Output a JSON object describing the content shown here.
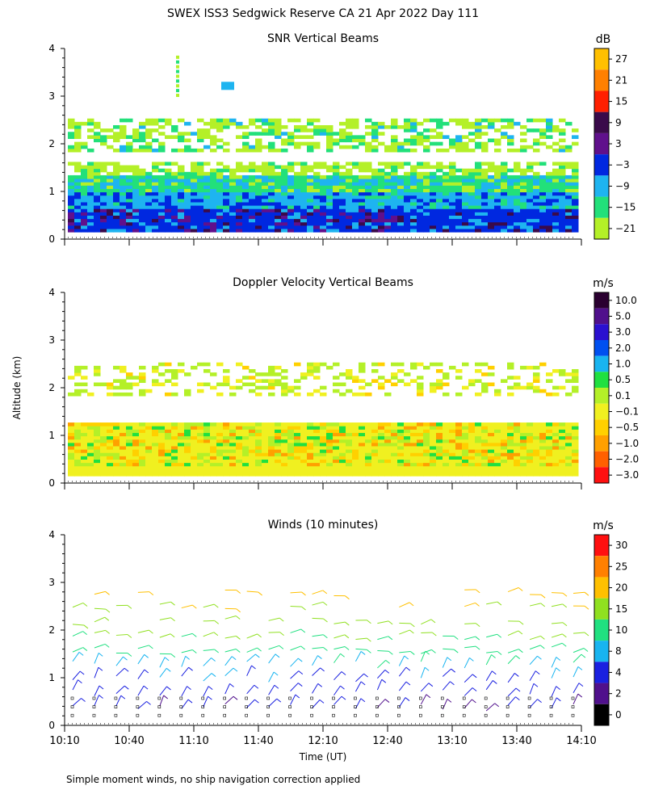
{
  "title": "SWEX ISS3 Sedgwick Reserve CA  21 Apr 2022 Day 111",
  "ylabel": "Altitude (km)",
  "xlabel": "Time (UT)",
  "footnote": "Simple moment winds, no ship navigation correction applied",
  "xticks": [
    "10:10",
    "10:40",
    "11:10",
    "11:40",
    "12:10",
    "12:40",
    "13:10",
    "13:40",
    "14:10"
  ],
  "yticks": [
    "0",
    "1",
    "2",
    "3",
    "4"
  ],
  "panels": [
    {
      "title": "SNR Vertical Beams",
      "unit": "dB",
      "colorbar": {
        "labels": [
          "27",
          "21",
          "15",
          "9",
          "3",
          "−3",
          "−9",
          "−15",
          "−21"
        ],
        "colors": [
          "#ffc000",
          "#ff8000",
          "#ff2000",
          "#3a0a4a",
          "#60108c",
          "#0028e0",
          "#1eb4f0",
          "#22e07a",
          "#b4f028"
        ]
      }
    },
    {
      "title": "Doppler Velocity Vertical Beams",
      "unit": "m/s",
      "colorbar": {
        "labels": [
          "10.0",
          "5.0",
          "3.0",
          "2.0",
          "1.0",
          "0.5",
          "0.1",
          "−0.1",
          "−0.5",
          "−1.0",
          "−2.0",
          "−3.0"
        ],
        "colors": [
          "#2a0030",
          "#50108c",
          "#2a10d0",
          "#0050f0",
          "#18b4f0",
          "#20e040",
          "#b4f028",
          "#f0f020",
          "#ffd000",
          "#ffa000",
          "#ff6000",
          "#ff1010"
        ]
      }
    },
    {
      "title": "Winds (10 minutes)",
      "unit": "m/s",
      "colorbar": {
        "labels": [
          "30",
          "25",
          "20",
          "15",
          "10",
          "8",
          "4",
          "2",
          "0"
        ],
        "colors": [
          "#ff1010",
          "#ff8000",
          "#ffc000",
          "#90e020",
          "#20e080",
          "#18b4f0",
          "#1a20e0",
          "#50108c",
          "#000000"
        ]
      }
    }
  ],
  "chart_data": [
    {
      "type": "heatmap",
      "title": "SNR Vertical Beams",
      "ylabel": "Altitude (km)",
      "unit": "dB",
      "ylim": [
        0,
        4
      ],
      "xlim": [
        "10:10",
        "14:10"
      ],
      "color_levels": [
        -21,
        -15,
        -9,
        -3,
        3,
        9,
        15,
        21,
        27
      ],
      "description_rows": [
        {
          "alt_range": [
            0.15,
            0.6
          ],
          "snr_db": 3
        },
        {
          "alt_range": [
            0.6,
            1.0
          ],
          "snr_db": -9
        },
        {
          "alt_range": [
            1.0,
            1.3
          ],
          "snr_db": -15
        },
        {
          "alt_range": [
            1.3,
            1.6
          ],
          "snr_db": -21
        },
        {
          "alt_range": [
            1.8,
            2.5
          ],
          "snr_db": -15
        }
      ]
    },
    {
      "type": "heatmap",
      "title": "Doppler Velocity Vertical Beams",
      "ylabel": "Altitude (km)",
      "unit": "m/s",
      "ylim": [
        0,
        4
      ],
      "xlim": [
        "10:10",
        "14:10"
      ],
      "color_levels": [
        -3.0,
        -2.0,
        -1.0,
        -0.5,
        -0.1,
        0.1,
        0.5,
        1.0,
        2.0,
        3.0,
        5.0,
        10.0
      ],
      "description_rows": [
        {
          "alt_range": [
            0.15,
            1.3
          ],
          "velocity_ms": -0.1
        },
        {
          "alt_range": [
            1.8,
            2.5
          ],
          "velocity_ms": 0.1
        }
      ]
    },
    {
      "type": "scatter",
      "title": "Winds (10 minutes)",
      "ylabel": "Altitude (km)",
      "xlabel": "Time (UT)",
      "unit": "m/s",
      "ylim": [
        0,
        4
      ],
      "xlim": [
        "10:10",
        "14:10"
      ],
      "color_levels": [
        0,
        2,
        4,
        8,
        10,
        15,
        20,
        25,
        30
      ],
      "profile_times": [
        "10:10",
        "10:20",
        "10:30",
        "10:40",
        "10:50",
        "11:00",
        "11:10",
        "11:20",
        "11:30",
        "11:40",
        "11:50",
        "12:00",
        "12:10",
        "12:20",
        "12:30",
        "12:40",
        "12:50",
        "13:00",
        "13:10",
        "13:20",
        "13:30",
        "13:40",
        "13:50",
        "14:00"
      ],
      "typical_speed_by_alt": [
        {
          "alt_km": 0.5,
          "speed_ms": 3
        },
        {
          "alt_km": 1.0,
          "speed_ms": 6
        },
        {
          "alt_km": 1.5,
          "speed_ms": 10
        },
        {
          "alt_km": 2.0,
          "speed_ms": 16
        },
        {
          "alt_km": 2.5,
          "speed_ms": 18
        }
      ]
    }
  ]
}
